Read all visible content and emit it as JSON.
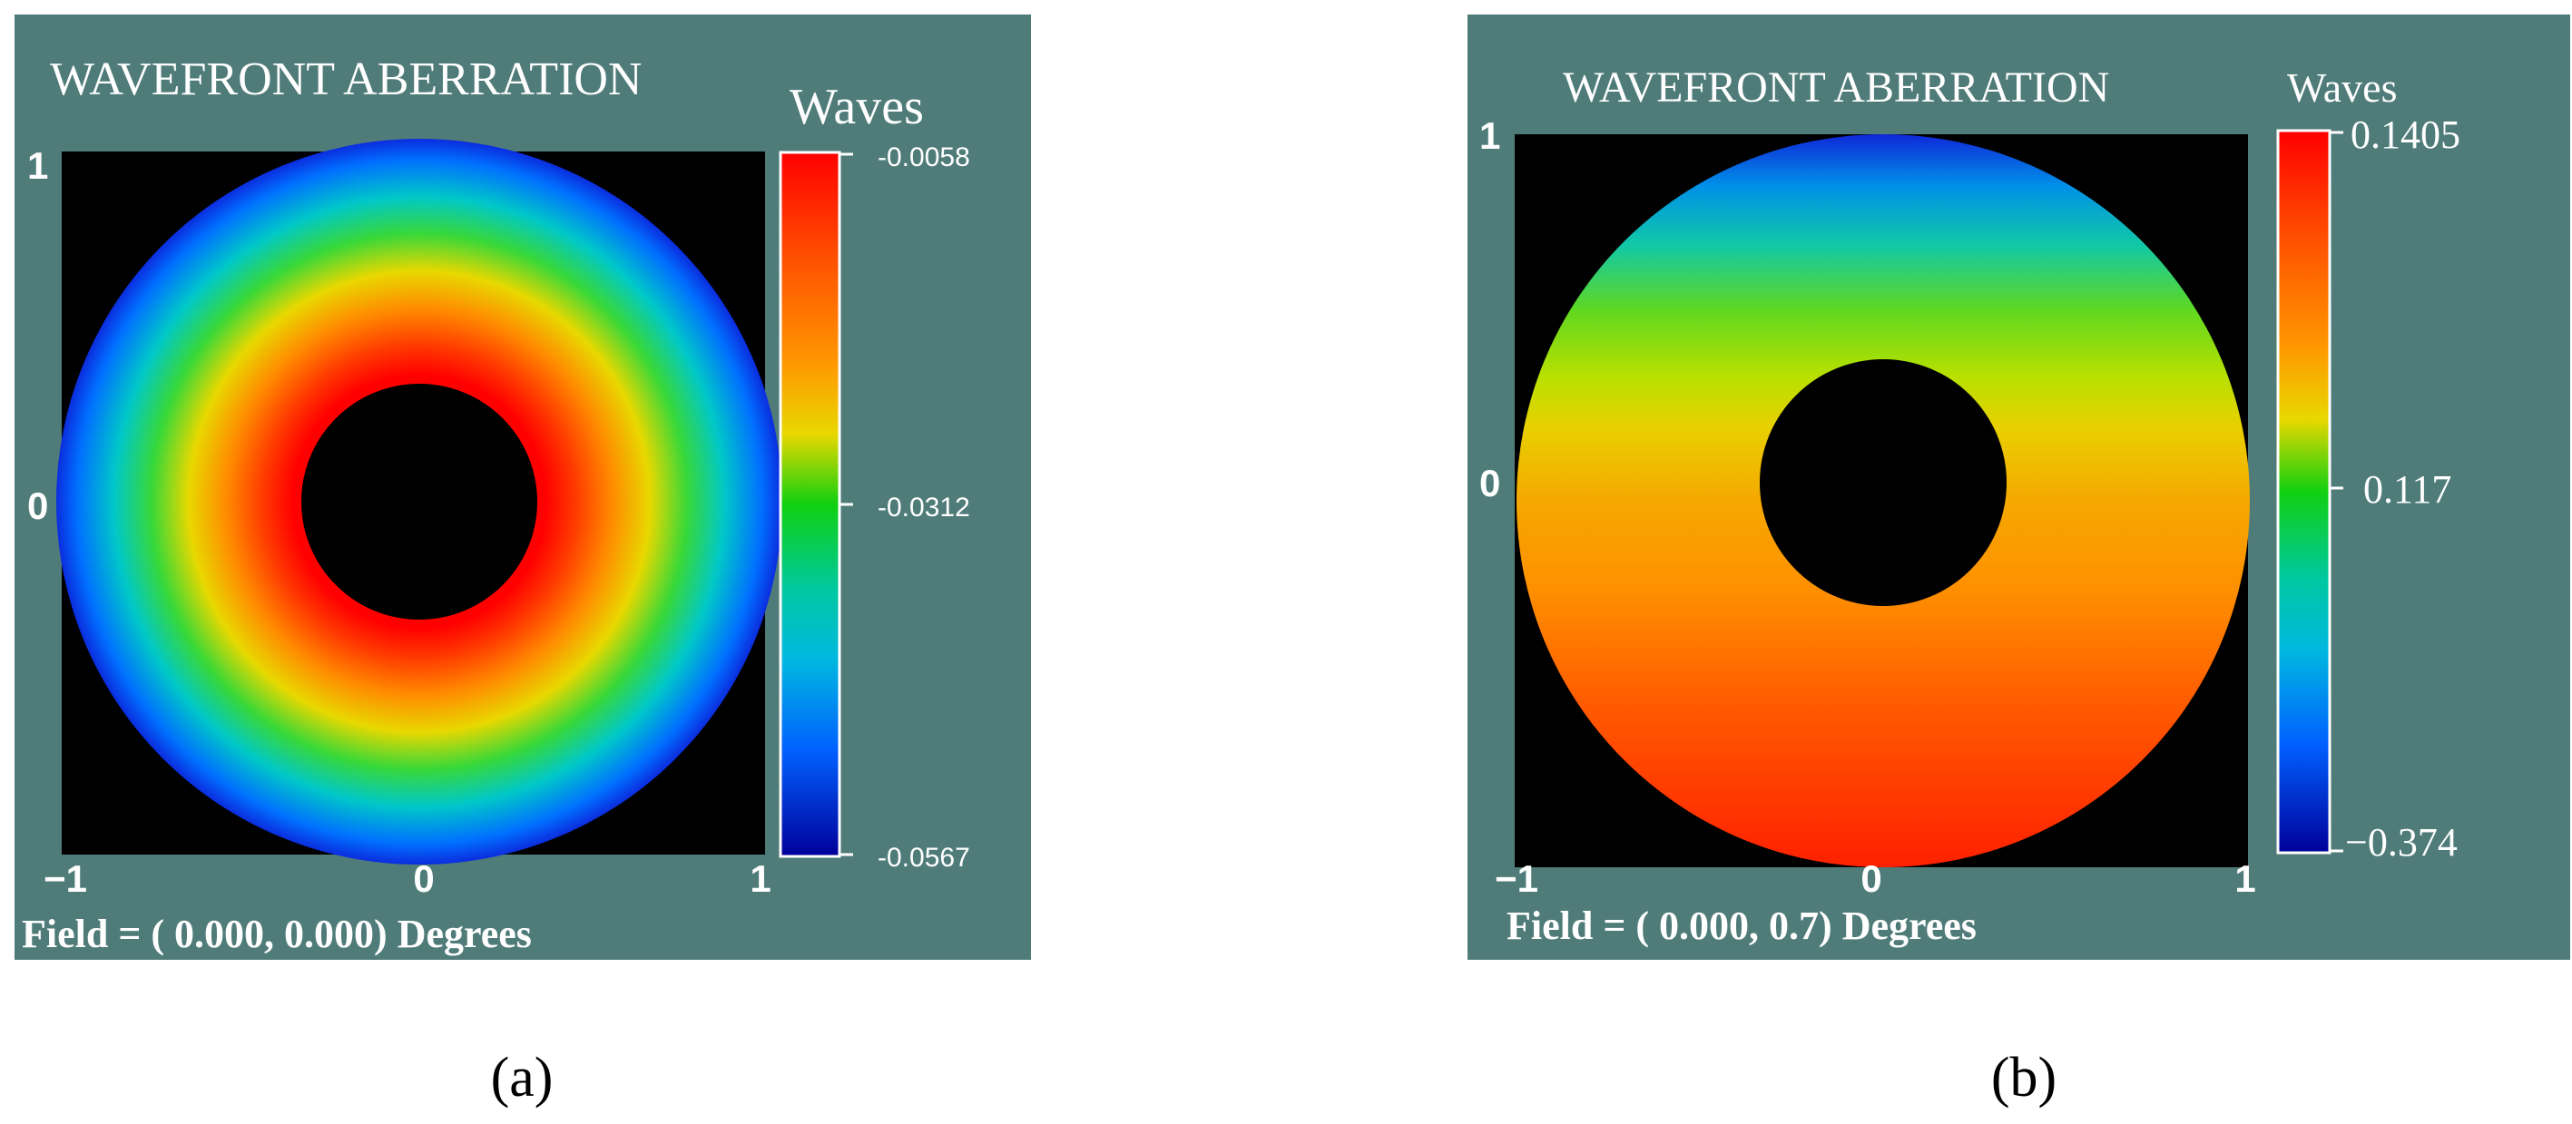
{
  "panels": [
    {
      "title": "WAVEFRONT ABERRATION",
      "field_text": "Field = ( 0.000, 0.000) Degrees",
      "caption": "(a)",
      "colorbar": {
        "title": "Waves",
        "ticks": [
          "-0.0058",
          "-0.0312",
          "-0.0567"
        ]
      },
      "x_ticks": [
        "−1",
        "0",
        "1"
      ],
      "y_ticks": [
        "1",
        "0"
      ]
    },
    {
      "title": "WAVEFRONT ABERRATION",
      "field_text": "Field = ( 0.000, 0.7) Degrees",
      "caption": "(b)",
      "colorbar": {
        "title": "Waves",
        "ticks": [
          "0.1405",
          "0.117",
          "−0.374"
        ]
      },
      "x_ticks": [
        "−1",
        "0",
        "1"
      ],
      "y_ticks": [
        "1",
        "0"
      ]
    }
  ],
  "colors": {
    "panel_background": "#4f7c79",
    "plot_background": "#000000",
    "text": "#ffffff",
    "caption_text": "#000000"
  },
  "chart_data": [
    {
      "type": "heatmap",
      "title": "WAVEFRONT ABERRATION",
      "description_field": "Field = ( 0.000, 0.000) Degrees",
      "x_range": [
        -1,
        1
      ],
      "y_range": [
        -1,
        1
      ],
      "x_ticks": [
        -1,
        0,
        1
      ],
      "y_ticks": [
        0,
        1
      ],
      "colorbar_label": "Waves",
      "colorbar_range": [
        -0.0567,
        -0.0058
      ],
      "colorbar_ticks": [
        -0.0058,
        -0.0312,
        -0.0567
      ],
      "pupil": {
        "outer_radius": 1.0,
        "inner_obscuration_radius": 0.34
      },
      "pattern": "rotationally symmetric annulus; maximum at inner obscuration edge, minimum at outer edge"
    },
    {
      "type": "heatmap",
      "title": "WAVEFRONT ABERRATION",
      "description_field": "Field = ( 0.000, 0.7) Degrees",
      "x_range": [
        -1,
        1
      ],
      "y_range": [
        -1,
        1
      ],
      "x_ticks": [
        -1,
        0,
        1
      ],
      "y_ticks": [
        0,
        1
      ],
      "colorbar_label": "Waves",
      "colorbar_range": [
        -0.374,
        0.1405
      ],
      "colorbar_ticks": [
        0.1405,
        0.117,
        -0.374
      ],
      "pupil": {
        "outer_radius": 1.0,
        "inner_obscuration_radius": 0.34
      },
      "pattern": "asymmetric along y; minimum at top edge of pupil, maximum toward bottom"
    }
  ]
}
